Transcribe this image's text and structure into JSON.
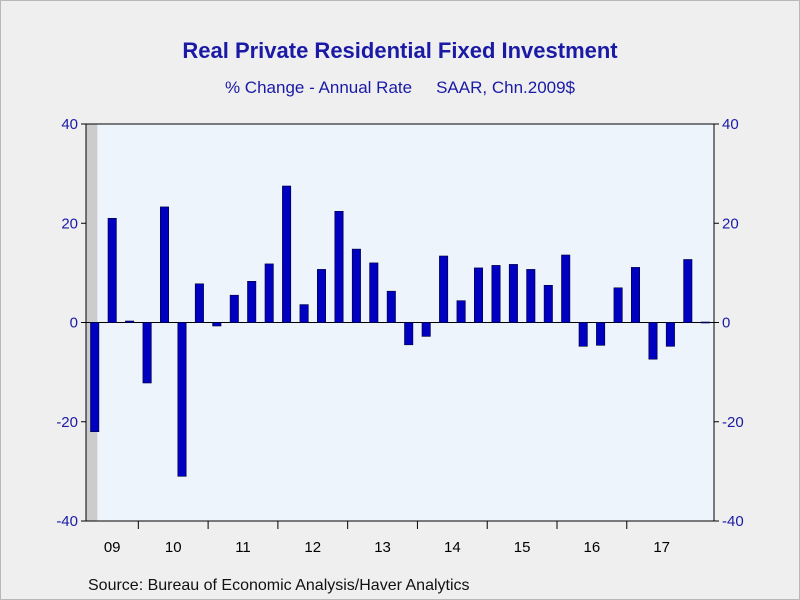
{
  "chart_data": {
    "type": "bar",
    "title": "Real Private Residential Fixed Investment",
    "subtitle_left": "% Change - Annual Rate",
    "subtitle_right": "SAAR, Chn.2009$",
    "source": "Source:  Bureau of Economic Analysis/Haver Analytics",
    "ylim": [
      -40,
      40
    ],
    "y_ticks": [
      40,
      20,
      0,
      -20,
      -40
    ],
    "x_tick_labels": [
      "09",
      "10",
      "11",
      "12",
      "13",
      "14",
      "15",
      "16",
      "17"
    ],
    "periods": [
      "2009Q2",
      "2009Q3",
      "2009Q4",
      "2010Q1",
      "2010Q2",
      "2010Q3",
      "2010Q4",
      "2011Q1",
      "2011Q2",
      "2011Q3",
      "2011Q4",
      "2012Q1",
      "2012Q2",
      "2012Q3",
      "2012Q4",
      "2013Q1",
      "2013Q2",
      "2013Q3",
      "2013Q4",
      "2014Q1",
      "2014Q2",
      "2014Q3",
      "2014Q4",
      "2015Q1",
      "2015Q2",
      "2015Q3",
      "2015Q4",
      "2016Q1",
      "2016Q2",
      "2016Q3",
      "2016Q4",
      "2017Q1",
      "2017Q2",
      "2017Q3",
      "2017Q4",
      "2018Q1"
    ],
    "values": [
      -22,
      21,
      0.3,
      -12.2,
      23.3,
      -31,
      7.8,
      -0.7,
      5.5,
      8.3,
      11.8,
      27.5,
      3.6,
      10.7,
      22.4,
      14.8,
      12,
      6.3,
      -4.5,
      -2.8,
      13.4,
      4.4,
      11,
      11.5,
      11.7,
      10.7,
      7.5,
      13.6,
      -4.8,
      -4.6,
      7,
      11.1,
      -7.4,
      -4.8,
      12.7,
      0.1
    ],
    "recession_shading": {
      "start_period": "2009Q2",
      "end_period": "2009Q2"
    },
    "colors": {
      "bar": "#0000c0",
      "plot_bg": "#eef4fc",
      "text": "#1a1aa6",
      "recession": "#cccccc"
    }
  }
}
